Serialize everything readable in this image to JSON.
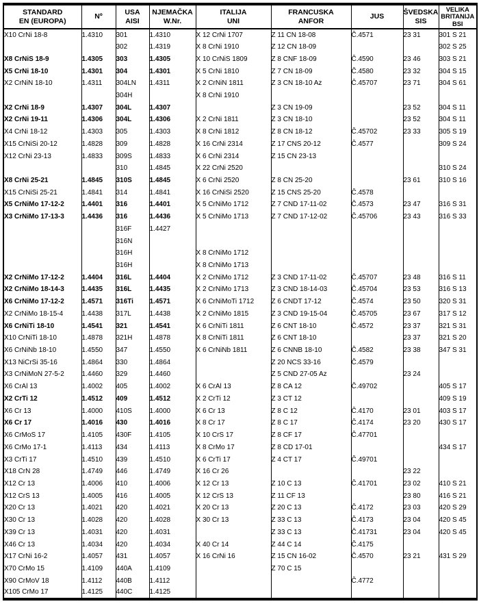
{
  "table": {
    "title": "steel-standards-cross-reference",
    "headers": [
      {
        "id": "standard-en",
        "lines": [
          "STANDARD",
          "EN (EUROPA)"
        ]
      },
      {
        "id": "no",
        "lines": [
          "Nº"
        ]
      },
      {
        "id": "usa-aisi",
        "lines": [
          "USA",
          "AISI"
        ]
      },
      {
        "id": "njemacka-wnr",
        "lines": [
          "NJEMAČKA",
          "W.Nr."
        ]
      },
      {
        "id": "italija-uni",
        "lines": [
          "ITALIJA",
          "UNI"
        ]
      },
      {
        "id": "francuska-anfor",
        "lines": [
          "FRANCUSKA",
          "ANFOR"
        ]
      },
      {
        "id": "jus",
        "lines": [
          "JUS"
        ]
      },
      {
        "id": "svedska-sis",
        "lines": [
          "ŠVEDSKA",
          "SIS"
        ]
      },
      {
        "id": "velika-britanija-bsi",
        "lines": [
          "VELIKA",
          "BRITANIJA",
          "BSI"
        ],
        "small": true
      }
    ],
    "rows": [
      {
        "bold": false,
        "cells": [
          "X10 CrNi 18-8",
          "1.4310",
          "301",
          "1.4310",
          "X 12 CrNi 1707",
          "Z 11 CN 18-08",
          "Č.4571",
          "23 31",
          "301 S 21"
        ]
      },
      {
        "bold": false,
        "cells": [
          "",
          "",
          "302",
          "1.4319",
          "X 8 CrNi 1910",
          "Z 12 CN 18-09",
          "",
          "",
          "302 S 25"
        ]
      },
      {
        "bold": true,
        "cells": [
          "X8 CrNiS 18-9",
          "1.4305",
          "303",
          "1.4305",
          "X 10 CrNiS 1809",
          "Z 8 CNF 18-09",
          "Č.4590",
          "23 46",
          "303 S 21"
        ]
      },
      {
        "bold": true,
        "cells": [
          "X5 CrNi 18-10",
          "1.4301",
          "304",
          "1.4301",
          "X 5 CrNi 1810",
          "Z 7 CN 18-09",
          "Č.4580",
          "23 32",
          "304 S 15"
        ]
      },
      {
        "bold": false,
        "cells": [
          "X2 CrNiN 18-10",
          "1.4311",
          "304LN",
          "1.4311",
          "X 2 CrNiN 1811",
          "Z 3 CN 18-10 Az",
          "Č.45707",
          "23 71",
          "304 S 61"
        ]
      },
      {
        "bold": false,
        "cells": [
          "",
          "",
          "304H",
          "",
          "X 8 CrNi 1910",
          "",
          "",
          "",
          ""
        ]
      },
      {
        "bold": true,
        "cells": [
          "X2 CrNi 18-9",
          "1.4307",
          "304L",
          "1.4307",
          "",
          "Z 3 CN 19-09",
          "",
          "23 52",
          "304 S 11"
        ]
      },
      {
        "bold": true,
        "cells": [
          "X2 CrNi 19-11",
          "1.4306",
          "304L",
          "1.4306",
          "X 2 CrNi 1811",
          "Z 3 CN 18-10",
          "",
          "23 52",
          "304 S 11"
        ]
      },
      {
        "bold": false,
        "cells": [
          "X4 CrNi 18-12",
          "1.4303",
          "305",
          "1.4303",
          "X 8 CrNi 1812",
          "Z 8 CN 18-12",
          "Č.45702",
          "23 33",
          "305 S 19"
        ]
      },
      {
        "bold": false,
        "cells": [
          "X15 CrNiSi 20-12",
          "1.4828",
          "309",
          "1.4828",
          "X 16 CrNi 2314",
          "Z 17 CNS 20-12",
          "Č.4577",
          "",
          "309 S 24"
        ]
      },
      {
        "bold": false,
        "cells": [
          "X12 CrNi 23-13",
          "1.4833",
          "309S",
          "1.4833",
          "X 6 CrNi 2314",
          "Z 15 CN 23-13",
          "",
          "",
          ""
        ]
      },
      {
        "bold": false,
        "cells": [
          "",
          "",
          "310",
          "1.4845",
          "X 22 CrNi 2520",
          "",
          "",
          "",
          "310 S 24"
        ]
      },
      {
        "bold": true,
        "cells": [
          "X8 CrNi 25-21",
          "1.4845",
          "310S",
          "1.4845",
          "X 6 CrNi 2520",
          "Z 8 CN 25-20",
          "",
          "23 61",
          "310 S 16"
        ]
      },
      {
        "bold": false,
        "cells": [
          "X15 CrNiSi 25-21",
          "1.4841",
          "314",
          "1.4841",
          "X 16 CrNiSi 2520",
          "Z 15 CNS 25-20",
          "Č.4578",
          "",
          ""
        ]
      },
      {
        "bold": true,
        "cells": [
          "X5 CrNiMo 17-12-2",
          "1.4401",
          "316",
          "1.4401",
          "X 5 CrNiMo 1712",
          "Z 7 CND 17-11-02",
          "Č.4573",
          "23 47",
          "316 S 31"
        ]
      },
      {
        "bold": true,
        "cells": [
          "X3 CrNiMo 17-13-3",
          "1.4436",
          "316",
          "1.4436",
          "X 5 CrNiMo 1713",
          "Z 7 CND 17-12-02",
          "Č.45706",
          "23 43",
          "316 S 33"
        ]
      },
      {
        "bold": false,
        "cells": [
          "",
          "",
          "316F",
          "1.4427",
          "",
          "",
          "",
          "",
          ""
        ]
      },
      {
        "bold": false,
        "cells": [
          "",
          "",
          "316N",
          "",
          "",
          "",
          "",
          "",
          ""
        ]
      },
      {
        "bold": false,
        "cells": [
          "",
          "",
          "316H",
          "",
          "X 8 CrNiMo 1712",
          "",
          "",
          "",
          ""
        ]
      },
      {
        "bold": false,
        "cells": [
          "",
          "",
          "316H",
          "",
          "X 8 CrNiMo 1713",
          "",
          "",
          "",
          ""
        ]
      },
      {
        "bold": true,
        "cells": [
          "X2 CrNiMo 17-12-2",
          "1.4404",
          "316L",
          "1.4404",
          "X 2 CrNiMo 1712",
          "Z 3 CND 17-11-02",
          "Č.45707",
          "23 48",
          "316 S 11"
        ]
      },
      {
        "bold": true,
        "cells": [
          "X2 CrNiMo 18-14-3",
          "1.4435",
          "316L",
          "1.4435",
          "X 2 CrNiMo 1713",
          "Z 3 CND 18-14-03",
          "Č.45704",
          "23 53",
          "316 S 13"
        ]
      },
      {
        "bold": true,
        "cells": [
          "X6 CrNiMo 17-12-2",
          "1.4571",
          "316Ti",
          "1.4571",
          "X 6 CrNiMoTi 1712",
          "Z 6 CNDT 17-12",
          "Č.4574",
          "23 50",
          "320 S 31"
        ]
      },
      {
        "bold": false,
        "cells": [
          "X2 CrNiMo 18-15-4",
          "1.4438",
          "317L",
          "1.4438",
          "X 2 CrNiMo 1815",
          "Z 3 CND 19-15-04",
          "Č.45705",
          "23 67",
          "317 S 12"
        ]
      },
      {
        "bold": true,
        "cells": [
          "X6 CrNiTi 18-10",
          "1.4541",
          "321",
          "1.4541",
          "X 6 CrNiTi 1811",
          "Z 6 CNT 18-10",
          "Č.4572",
          "23 37",
          "321 S 31"
        ]
      },
      {
        "bold": false,
        "cells": [
          "X10 CrNiTi 18-10",
          "1.4878",
          "321H",
          "1.4878",
          "X 8 CrNiTi 1811",
          "Z 6 CNT 18-10",
          "",
          "23 37",
          "321 S 20"
        ]
      },
      {
        "bold": false,
        "cells": [
          "X6 CrNiNb 18-10",
          "1.4550",
          "347",
          "1.4550",
          "X 6 CrNiNb 1811",
          "Z 6 CNNB 18-10",
          "Č.4582",
          "23 38",
          "347 S 31"
        ]
      },
      {
        "bold": false,
        "cells": [
          "X13 NiCrSi 35-16",
          "1.4864",
          "330",
          "1.4864",
          "",
          "Z 20 NCS 33-16",
          "Č.4579",
          "",
          ""
        ]
      },
      {
        "bold": false,
        "cells": [
          "X3 CrNiMoN 27-5-2",
          "1.4460",
          "329",
          "1.4460",
          "",
          "Z 5 CND 27-05 Az",
          "",
          "23 24",
          ""
        ]
      },
      {
        "bold": false,
        "cells": [
          "X6 CrAl 13",
          "1.4002",
          "405",
          "1.4002",
          "X 6 CrAl 13",
          "Z 8 CA 12",
          "Č.49702",
          "",
          "405 S 17"
        ]
      },
      {
        "bold": true,
        "cells": [
          "X2 CrTi 12",
          "1.4512",
          "409",
          "1.4512",
          "X 2 CrTi 12",
          "Z 3 CT 12",
          "",
          "",
          "409 S 19"
        ]
      },
      {
        "bold": false,
        "cells": [
          "X6 Cr 13",
          "1.4000",
          "410S",
          "1.4000",
          "X 6 Cr 13",
          "Z 8 C 12",
          "Č.4170",
          "23 01",
          "403 S 17"
        ]
      },
      {
        "bold": true,
        "cells": [
          "X6 Cr 17",
          "1.4016",
          "430",
          "1.4016",
          "X 8 Cr 17",
          "Z 8 C 17",
          "Č.4174",
          "23 20",
          "430 S 17"
        ]
      },
      {
        "bold": false,
        "cells": [
          "X6 CrMoS 17",
          "1.4105",
          "430F",
          "1.4105",
          "X 10 CrS 17",
          "Z 8 CF 17",
          "Č.47701",
          "",
          ""
        ]
      },
      {
        "bold": false,
        "cells": [
          "X6 CrMo 17-1",
          "1.4113",
          "434",
          "1.4113",
          "X 8 CrMo 17",
          "Z 8 CD 17-01",
          "",
          "",
          "434 S 17"
        ]
      },
      {
        "bold": false,
        "cells": [
          "X3 CrTi 17",
          "1.4510",
          "439",
          "1.4510",
          "X 6 CrTi 17",
          "Z 4 CT 17",
          "Č.49701",
          "",
          ""
        ]
      },
      {
        "bold": false,
        "cells": [
          "X18 CrN 28",
          "1.4749",
          "446",
          "1.4749",
          "X 16 Cr 26",
          "",
          "",
          "23 22",
          ""
        ]
      },
      {
        "bold": false,
        "cells": [
          "X12 Cr 13",
          "1.4006",
          "410",
          "1.4006",
          "X 12 Cr 13",
          "Z 10 C 13",
          "Č.41701",
          "23 02",
          "410 S 21"
        ]
      },
      {
        "bold": false,
        "cells": [
          "X12 CrS 13",
          "1.4005",
          "416",
          "1.4005",
          "X 12 CrS 13",
          "Z 11 CF 13",
          "",
          "23 80",
          "416 S 21"
        ]
      },
      {
        "bold": false,
        "cells": [
          "X20 Cr 13",
          "1.4021",
          "420",
          "1.4021",
          "X 20 Cr 13",
          "Z 20 C 13",
          "Č.4172",
          "23 03",
          "420 S 29"
        ]
      },
      {
        "bold": false,
        "cells": [
          "X30 Cr 13",
          "1.4028",
          "420",
          "1.4028",
          "X 30 Cr 13",
          "Z 33 C 13",
          "Č.4173",
          "23 04",
          "420 S 45"
        ]
      },
      {
        "bold": false,
        "cells": [
          "X39 Cr 13",
          "1.4031",
          "420",
          "1.4031",
          "",
          "Z 33 C 13",
          "Č.41731",
          "23 04",
          "420 S 45"
        ]
      },
      {
        "bold": false,
        "cells": [
          "X46 Cr 13",
          "1.4034",
          "420",
          "1.4034",
          "X 40 Cr 14",
          "Z 44 C 14",
          "Č.4175",
          "",
          ""
        ]
      },
      {
        "bold": false,
        "cells": [
          "X17 CrNi 16-2",
          "1.4057",
          "431",
          "1.4057",
          "X 16 CrNi 16",
          "Z 15 CN 16-02",
          "Č.4570",
          "23 21",
          "431 S 29"
        ]
      },
      {
        "bold": false,
        "cells": [
          "X70 CrMo 15",
          "1.4109",
          "440A",
          "1.4109",
          "",
          "Z 70 C 15",
          "",
          "",
          ""
        ]
      },
      {
        "bold": false,
        "cells": [
          "X90 CrMoV 18",
          "1.4112",
          "440B",
          "1.4112",
          "",
          "",
          "Č.4772",
          "",
          ""
        ]
      },
      {
        "bold": false,
        "cells": [
          "X105 CrMo 17",
          "1.4125",
          "440C",
          "1.4125",
          "",
          "",
          "",
          "",
          ""
        ]
      }
    ]
  }
}
